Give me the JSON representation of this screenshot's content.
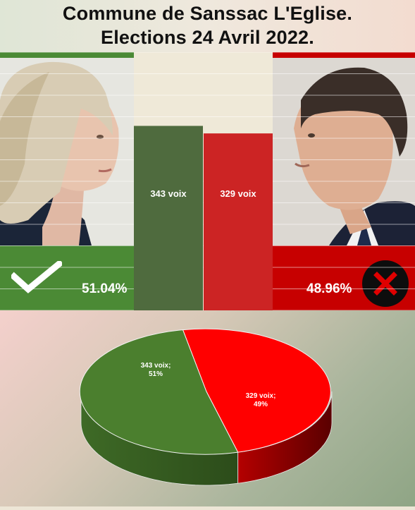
{
  "header": {
    "line1": "Commune de Sanssac L'Eglise.",
    "line2": "Elections 24 Avril 2022."
  },
  "candidates": {
    "left": {
      "percent": "51.04%",
      "icon": "checkmark-icon",
      "color": "#4b8a35"
    },
    "right": {
      "percent": "48.96%",
      "icon": "cross-icon",
      "color": "#c70000"
    }
  },
  "chart_data": [
    {
      "type": "bar",
      "categories": [
        "",
        ""
      ],
      "values": [
        343,
        329
      ],
      "data_labels": [
        "343 voix",
        "329 voix"
      ],
      "colors": [
        "#4f6b3e",
        "#cc2424"
      ],
      "grid": true
    },
    {
      "type": "pie",
      "values": [
        343,
        329
      ],
      "percentages": [
        51,
        49
      ],
      "data_labels": [
        [
          "343 voix;",
          "51%"
        ],
        [
          "329 voix;",
          "49%"
        ]
      ],
      "colors": [
        "#4b7f2e",
        "#ff0000"
      ],
      "style": "3d"
    }
  ]
}
